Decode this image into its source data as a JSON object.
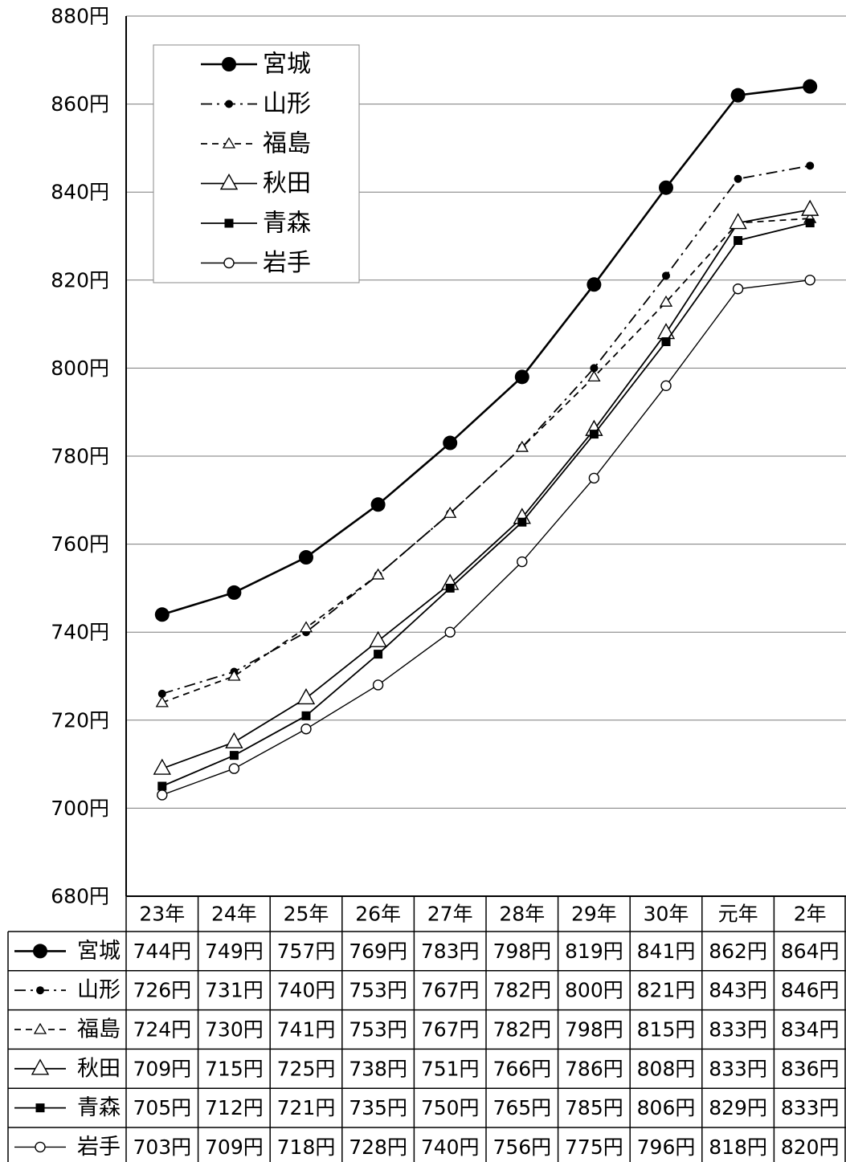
{
  "chart_data": {
    "type": "line",
    "title": "",
    "xlabel": "",
    "ylabel": "",
    "categories": [
      "23年",
      "24年",
      "25年",
      "26年",
      "27年",
      "28年",
      "29年",
      "30年",
      "元年",
      "2年"
    ],
    "ylim": [
      680,
      880
    ],
    "y_ticks": [
      680,
      700,
      720,
      740,
      760,
      780,
      800,
      820,
      840,
      860,
      880
    ],
    "y_tick_labels": [
      "680円",
      "700円",
      "720円",
      "740円",
      "760円",
      "780円",
      "800円",
      "820円",
      "840円",
      "860円",
      "880円"
    ],
    "grid": true,
    "legend_position": "top-left",
    "unit": "円",
    "series": [
      {
        "name": "宮城",
        "values": [
          744,
          749,
          757,
          769,
          783,
          798,
          819,
          841,
          862,
          864
        ],
        "value_labels": [
          "744円",
          "749円",
          "757円",
          "769円",
          "783円",
          "798円",
          "819円",
          "841円",
          "862円",
          "864円"
        ],
        "line_style": "solid-thick",
        "marker": "filled-circle-large"
      },
      {
        "name": "山形",
        "values": [
          726,
          731,
          740,
          753,
          767,
          782,
          800,
          821,
          843,
          846
        ],
        "value_labels": [
          "726円",
          "731円",
          "740円",
          "753円",
          "767円",
          "782円",
          "800円",
          "821円",
          "843円",
          "846円"
        ],
        "line_style": "dash-dot",
        "marker": "filled-circle-small"
      },
      {
        "name": "福島",
        "values": [
          724,
          730,
          741,
          753,
          767,
          782,
          798,
          815,
          833,
          834
        ],
        "value_labels": [
          "724円",
          "730円",
          "741円",
          "753円",
          "767円",
          "782円",
          "798円",
          "815円",
          "833円",
          "834円"
        ],
        "line_style": "dashed",
        "marker": "open-triangle-small"
      },
      {
        "name": "秋田",
        "values": [
          709,
          715,
          725,
          738,
          751,
          766,
          786,
          808,
          833,
          836
        ],
        "value_labels": [
          "709円",
          "715円",
          "725円",
          "738円",
          "751円",
          "766円",
          "786円",
          "808円",
          "833円",
          "836円"
        ],
        "line_style": "solid",
        "marker": "open-triangle-large"
      },
      {
        "name": "青森",
        "values": [
          705,
          712,
          721,
          735,
          750,
          765,
          785,
          806,
          829,
          833
        ],
        "value_labels": [
          "705円",
          "712円",
          "721円",
          "735円",
          "750円",
          "765円",
          "785円",
          "806円",
          "829円",
          "833円"
        ],
        "line_style": "solid",
        "marker": "filled-square"
      },
      {
        "name": "岩手",
        "values": [
          703,
          709,
          718,
          728,
          740,
          756,
          775,
          796,
          818,
          820
        ],
        "value_labels": [
          "703円",
          "709円",
          "718円",
          "728円",
          "740円",
          "756円",
          "775円",
          "796円",
          "818円",
          "820円"
        ],
        "line_style": "solid-thin",
        "marker": "open-circle"
      }
    ]
  }
}
